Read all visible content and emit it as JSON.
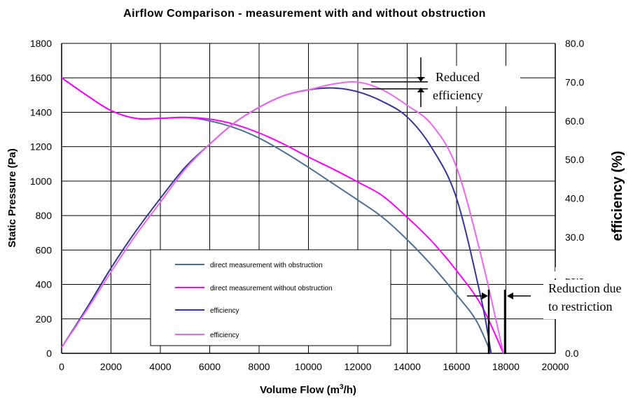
{
  "chart_data": {
    "type": "line",
    "title": "Airflow Comparison - measurement with and without obstruction",
    "xlabel_main": "Volume Flow (m",
    "xlabel_sup": "3",
    "xlabel_tail": "/h)",
    "ylabel_left": "Static Pressure (Pa)",
    "ylabel_right": "efficiency (%)",
    "xlim": [
      0,
      20000
    ],
    "ylim_left": [
      0,
      1800
    ],
    "ylim_right": [
      0,
      80
    ],
    "grid": true,
    "x_ticks": [
      "0",
      "2000",
      "4000",
      "6000",
      "8000",
      "10000",
      "12000",
      "14000",
      "16000",
      "18000",
      "20000"
    ],
    "y_left_ticks": [
      "0",
      "200",
      "400",
      "600",
      "800",
      "1000",
      "1200",
      "1400",
      "1600",
      "1800"
    ],
    "y_right_ticks": [
      "0.0",
      "20.0",
      "30.0",
      "40.0",
      "50.0",
      "60.0",
      "70.0",
      "80.0"
    ],
    "series": [
      {
        "name": "direct measurement with obstruction",
        "axis": "left",
        "color": "#4a6f96",
        "x": [
          0,
          1000,
          2000,
          3000,
          4000,
          5000,
          6000,
          7000,
          8000,
          9000,
          10000,
          11000,
          12000,
          13000,
          14000,
          15000,
          16000,
          16800,
          17400
        ],
        "values": [
          1600,
          1500,
          1410,
          1365,
          1365,
          1370,
          1350,
          1310,
          1250,
          1170,
          1080,
          985,
          890,
          790,
          660,
          510,
          340,
          190,
          0
        ]
      },
      {
        "name": "direct measurement without obstruction",
        "axis": "left",
        "color": "#ff00ff",
        "x": [
          0,
          1000,
          2000,
          3000,
          4000,
          5000,
          6000,
          7000,
          8000,
          9000,
          10000,
          11000,
          12000,
          13000,
          14000,
          15000,
          16000,
          17000,
          17900
        ],
        "values": [
          1600,
          1500,
          1410,
          1365,
          1365,
          1370,
          1360,
          1330,
          1280,
          1215,
          1140,
          1070,
          995,
          915,
          790,
          650,
          480,
          280,
          0
        ]
      },
      {
        "name": "efficiency",
        "axis": "right",
        "color": "#333399",
        "x": [
          0,
          1000,
          2000,
          3000,
          4000,
          5000,
          6000,
          7000,
          8000,
          9000,
          10000,
          11000,
          12000,
          13000,
          14000,
          15000,
          16000,
          17000,
          17400
        ],
        "values": [
          1.5,
          11.5,
          22,
          31.5,
          40,
          48,
          54,
          59.5,
          63.5,
          66.5,
          68,
          68.5,
          67.5,
          65,
          61,
          53,
          40,
          14,
          0
        ]
      },
      {
        "name": "efficiency",
        "axis": "right",
        "color": "#ee66ee",
        "x": [
          0,
          1000,
          2000,
          3000,
          4000,
          5000,
          6000,
          7000,
          8000,
          9000,
          10000,
          11000,
          12000,
          13000,
          14000,
          15000,
          16000,
          17000,
          17900
        ],
        "values": [
          1.5,
          11,
          21,
          30.5,
          39,
          47.5,
          54,
          59.5,
          63.5,
          66.5,
          68,
          69.5,
          70,
          68,
          64,
          59,
          48,
          25,
          0
        ]
      }
    ],
    "annotations": [
      {
        "lines": [
          "Reduced",
          "efficiency"
        ]
      },
      {
        "lines": [
          "Reduction due",
          "to restriction"
        ]
      }
    ]
  }
}
